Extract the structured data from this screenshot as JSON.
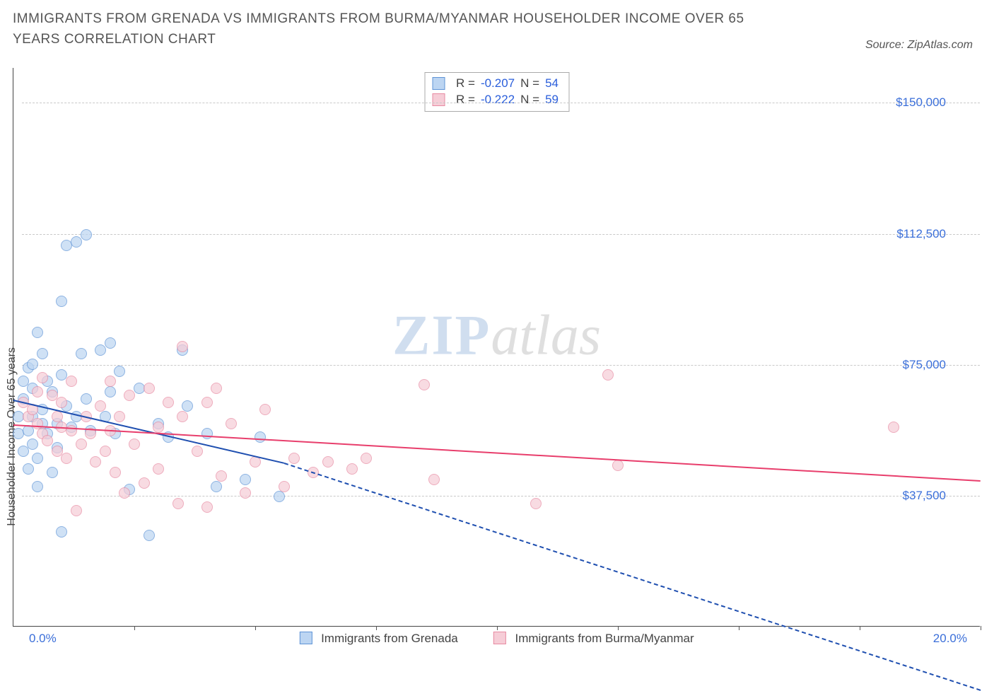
{
  "title": "IMMIGRANTS FROM GRENADA VS IMMIGRANTS FROM BURMA/MYANMAR HOUSEHOLDER INCOME OVER 65 YEARS CORRELATION CHART",
  "source_label": "Source: ZipAtlas.com",
  "watermark_a": "ZIP",
  "watermark_b": "atlas",
  "ylabel": "Householder Income Over 65 years",
  "chart": {
    "type": "scatter",
    "background_color": "#ffffff",
    "grid_color": "#c9c9c9",
    "axis_color": "#444444",
    "xlim": [
      0,
      20
    ],
    "ylim": [
      0,
      160000
    ],
    "x_tick_positions": [
      2.5,
      5.0,
      7.5,
      10.0,
      12.5,
      15.0,
      17.5,
      20.0
    ],
    "x_min_label": "0.0%",
    "x_max_label": "20.0%",
    "y_ticks": [
      {
        "v": 37500,
        "label": "$37,500"
      },
      {
        "v": 75000,
        "label": "$75,000"
      },
      {
        "v": 112500,
        "label": "$112,500"
      },
      {
        "v": 150000,
        "label": "$150,000"
      }
    ],
    "series": [
      {
        "name": "Immigrants from Grenada",
        "fill": "#bcd5f2",
        "stroke": "#5e93d6",
        "line_color": "#1f4fb0",
        "marker_radius": 8,
        "r_value": "-0.207",
        "n_value": "54",
        "trend": {
          "x1": 0.0,
          "y1": 65000,
          "x2": 5.6,
          "y2": 47000,
          "dashed_x2": 20.0,
          "dashed_y2": -18000
        },
        "points": [
          [
            0.1,
            60000
          ],
          [
            0.1,
            55000
          ],
          [
            0.2,
            50000
          ],
          [
            0.2,
            65000
          ],
          [
            0.2,
            70000
          ],
          [
            0.3,
            45000
          ],
          [
            0.3,
            56000
          ],
          [
            0.3,
            74000
          ],
          [
            0.4,
            52000
          ],
          [
            0.4,
            60000
          ],
          [
            0.4,
            68000
          ],
          [
            0.4,
            75000
          ],
          [
            0.5,
            40000
          ],
          [
            0.5,
            48000
          ],
          [
            0.5,
            84000
          ],
          [
            0.6,
            62000
          ],
          [
            0.6,
            58000
          ],
          [
            0.6,
            78000
          ],
          [
            0.7,
            55000
          ],
          [
            0.7,
            70000
          ],
          [
            0.8,
            44000
          ],
          [
            0.8,
            67000
          ],
          [
            0.9,
            51000
          ],
          [
            0.9,
            58000
          ],
          [
            1.0,
            93000
          ],
          [
            1.0,
            72000
          ],
          [
            1.1,
            109000
          ],
          [
            1.1,
            63000
          ],
          [
            1.2,
            57000
          ],
          [
            1.3,
            60000
          ],
          [
            1.3,
            110000
          ],
          [
            1.4,
            78000
          ],
          [
            1.5,
            65000
          ],
          [
            1.5,
            112000
          ],
          [
            1.6,
            56000
          ],
          [
            1.8,
            79000
          ],
          [
            1.9,
            60000
          ],
          [
            2.0,
            67000
          ],
          [
            2.0,
            81000
          ],
          [
            2.1,
            55000
          ],
          [
            2.2,
            73000
          ],
          [
            2.4,
            39000
          ],
          [
            2.6,
            68000
          ],
          [
            2.8,
            26000
          ],
          [
            3.0,
            58000
          ],
          [
            3.2,
            54000
          ],
          [
            3.5,
            79000
          ],
          [
            3.6,
            63000
          ],
          [
            4.0,
            55000
          ],
          [
            4.2,
            40000
          ],
          [
            4.8,
            42000
          ],
          [
            5.1,
            54000
          ],
          [
            5.5,
            37000
          ],
          [
            1.0,
            27000
          ]
        ]
      },
      {
        "name": "Immigrants from Burma/Myanmar",
        "fill": "#f6cdd7",
        "stroke": "#e78aa2",
        "line_color": "#e83e6c",
        "marker_radius": 8,
        "r_value": "-0.222",
        "n_value": "59",
        "trend": {
          "x1": 0.0,
          "y1": 58000,
          "x2": 20.0,
          "y2": 42000
        },
        "points": [
          [
            0.2,
            64000
          ],
          [
            0.3,
            60000
          ],
          [
            0.4,
            62000
          ],
          [
            0.5,
            58000
          ],
          [
            0.5,
            67000
          ],
          [
            0.6,
            55000
          ],
          [
            0.6,
            71000
          ],
          [
            0.7,
            53000
          ],
          [
            0.8,
            66000
          ],
          [
            0.9,
            50000
          ],
          [
            0.9,
            60000
          ],
          [
            1.0,
            57000
          ],
          [
            1.0,
            64000
          ],
          [
            1.1,
            48000
          ],
          [
            1.2,
            56000
          ],
          [
            1.2,
            70000
          ],
          [
            1.3,
            33000
          ],
          [
            1.4,
            52000
          ],
          [
            1.5,
            60000
          ],
          [
            1.6,
            55000
          ],
          [
            1.7,
            47000
          ],
          [
            1.8,
            63000
          ],
          [
            1.9,
            50000
          ],
          [
            2.0,
            56000
          ],
          [
            2.0,
            70000
          ],
          [
            2.1,
            44000
          ],
          [
            2.2,
            60000
          ],
          [
            2.3,
            38000
          ],
          [
            2.4,
            66000
          ],
          [
            2.5,
            52000
          ],
          [
            2.7,
            41000
          ],
          [
            2.8,
            68000
          ],
          [
            3.0,
            57000
          ],
          [
            3.0,
            45000
          ],
          [
            3.2,
            64000
          ],
          [
            3.4,
            35000
          ],
          [
            3.5,
            60000
          ],
          [
            3.5,
            80000
          ],
          [
            3.8,
            50000
          ],
          [
            4.0,
            64000
          ],
          [
            4.0,
            34000
          ],
          [
            4.2,
            68000
          ],
          [
            4.3,
            43000
          ],
          [
            4.5,
            58000
          ],
          [
            4.8,
            38000
          ],
          [
            5.0,
            47000
          ],
          [
            5.2,
            62000
          ],
          [
            5.6,
            40000
          ],
          [
            5.8,
            48000
          ],
          [
            6.2,
            44000
          ],
          [
            6.5,
            47000
          ],
          [
            7.0,
            45000
          ],
          [
            7.3,
            48000
          ],
          [
            8.5,
            69000
          ],
          [
            8.7,
            42000
          ],
          [
            10.8,
            35000
          ],
          [
            12.3,
            72000
          ],
          [
            12.5,
            46000
          ],
          [
            18.2,
            57000
          ]
        ]
      }
    ],
    "legend_top": {
      "r_label": "R = ",
      "n_label": "   N = "
    },
    "legend_bottom_labels": [
      "Immigrants from Grenada",
      "Immigrants from Burma/Myanmar"
    ]
  }
}
